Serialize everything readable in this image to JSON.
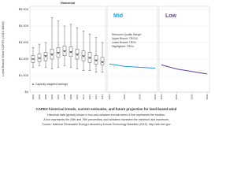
{
  "chart_data": [
    {
      "type": "box",
      "title": "Historical",
      "ylabel": "Land-Based Wind CAPEX (2015 $/kW)",
      "categories": [
        "2003",
        "2004",
        "2005",
        "2006",
        "2007",
        "2008",
        "2009",
        "2010",
        "2011",
        "2012",
        "2013",
        "2014"
      ],
      "boxes": [
        {
          "min": 1500,
          "q1": 1800,
          "median": 2000,
          "q3": 2200,
          "max": 2700
        },
        {
          "min": 1600,
          "q1": 1850,
          "median": 2050,
          "q3": 2300,
          "max": 2900
        },
        {
          "min": 1500,
          "q1": 1900,
          "median": 2200,
          "q3": 2400,
          "max": 3000
        },
        {
          "min": 1400,
          "q1": 2000,
          "median": 2300,
          "q3": 2600,
          "max": 4500
        },
        {
          "min": 1500,
          "q1": 2100,
          "median": 2400,
          "q3": 2700,
          "max": 4300
        },
        {
          "min": 1600,
          "q1": 2200,
          "median": 2500,
          "q3": 2800,
          "max": 4000
        },
        {
          "min": 1500,
          "q1": 2150,
          "median": 2450,
          "q3": 2750,
          "max": 4100
        },
        {
          "min": 1400,
          "q1": 2000,
          "median": 2300,
          "q3": 2600,
          "max": 3900
        },
        {
          "min": 1300,
          "q1": 1900,
          "median": 2200,
          "q3": 2500,
          "max": 3700
        },
        {
          "min": 1300,
          "q1": 1800,
          "median": 2100,
          "q3": 2400,
          "max": 3500
        },
        {
          "min": 1200,
          "q1": 1700,
          "median": 1950,
          "q3": 2200,
          "max": 3300
        },
        {
          "min": 1200,
          "q1": 1650,
          "median": 1850,
          "q3": 2100,
          "max": 3000
        }
      ],
      "average_name": "Capacity-weighted average",
      "average": [
        2000,
        2050,
        2150,
        2250,
        2350,
        2450,
        2400,
        2250,
        2150,
        2050,
        1900,
        1800
      ],
      "color": "#333333",
      "ylim": [
        0,
        5000
      ],
      "yticks": [
        {
          "value": 0,
          "label": "$0"
        },
        {
          "value": 1000,
          "label": "$1,000"
        },
        {
          "value": 2000,
          "label": "$2,000"
        },
        {
          "value": 3000,
          "label": "$3,000"
        },
        {
          "value": 4000,
          "label": "$4,000"
        },
        {
          "value": 5000,
          "label": "$5,000"
        }
      ]
    },
    {
      "type": "line",
      "title": "Mid",
      "color": "#1ca0d8",
      "x": [
        2015,
        2020,
        2025,
        2030
      ],
      "series": [
        {
          "color": "#1ca0d8",
          "values": [
            1700,
            1560,
            1500,
            1450
          ]
        }
      ],
      "xlim": [
        2015,
        2030
      ],
      "xticks": [
        2015,
        2020,
        2025,
        2030
      ],
      "ylim": [
        0,
        5000
      ],
      "annotations": [
        "Resource Quality Range:",
        "Upper Bound: TRG10",
        "Lower Bound: TRG1",
        "Highlighted: TRG4"
      ]
    },
    {
      "type": "line",
      "title": "Low",
      "color": "#6a3d9a",
      "x": [
        2015,
        2020,
        2025,
        2030
      ],
      "series": [
        {
          "color": "#6a3d9a",
          "values": [
            1650,
            1400,
            1250,
            1100
          ]
        }
      ],
      "xlim": [
        2015,
        2030
      ],
      "xticks": [
        2015,
        2020,
        2025,
        2030
      ],
      "ylim": [
        0,
        5000
      ]
    }
  ],
  "caption": [
    "CAPEX historical trends, current estimates, and future projection for land-based wind",
    "Historical data (global) shown in box-and-whiskers format where a line represents the median.",
    "A box represents the 25th and 75th percentiles, and whiskers represent the minimum and maximum.",
    "Source: National Renewable Energy Laboratory Annual Technology Baseline (2015). http://atb.nrel.gov"
  ]
}
